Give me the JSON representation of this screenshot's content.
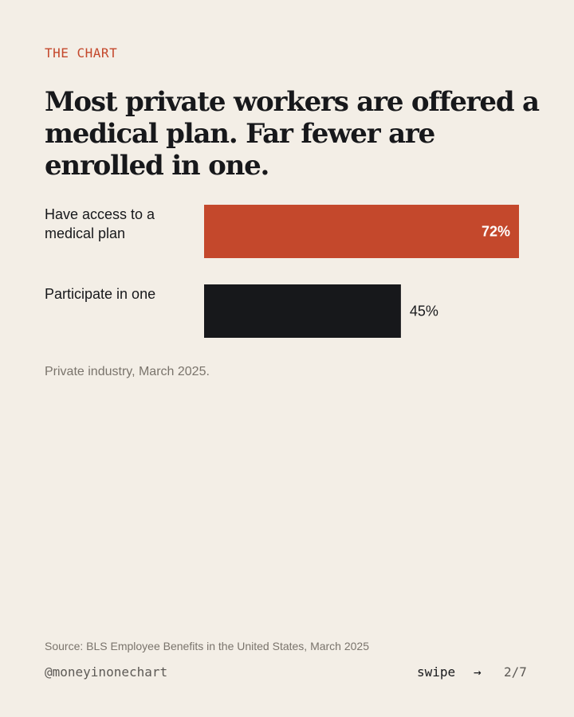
{
  "kicker": "THE CHART",
  "title": "Most private workers are offered a medical plan. Far fewer are enrolled in one.",
  "chart_data": {
    "type": "bar",
    "orientation": "horizontal",
    "categories": [
      [
        "Have access to a",
        "medical plan"
      ],
      [
        "Participate in one"
      ]
    ],
    "values": [
      72,
      45
    ],
    "value_labels": [
      "72%",
      "45%"
    ],
    "unit": "%",
    "xlim": [
      0,
      72
    ],
    "colors": [
      "#c4482c",
      "#17181b"
    ],
    "grid": false,
    "legend": "none"
  },
  "note": "Private industry, March 2025.",
  "source": "Source: BLS Employee Benefits in the United States, March 2025",
  "footer": {
    "handle": "@moneyinonechart",
    "swipe": "swipe",
    "arrow": "→",
    "page": "2/7"
  },
  "colors": {
    "background": "#f3eee6",
    "accent": "#c4482c",
    "ink": "#17181b",
    "muted": "#7a746c"
  }
}
